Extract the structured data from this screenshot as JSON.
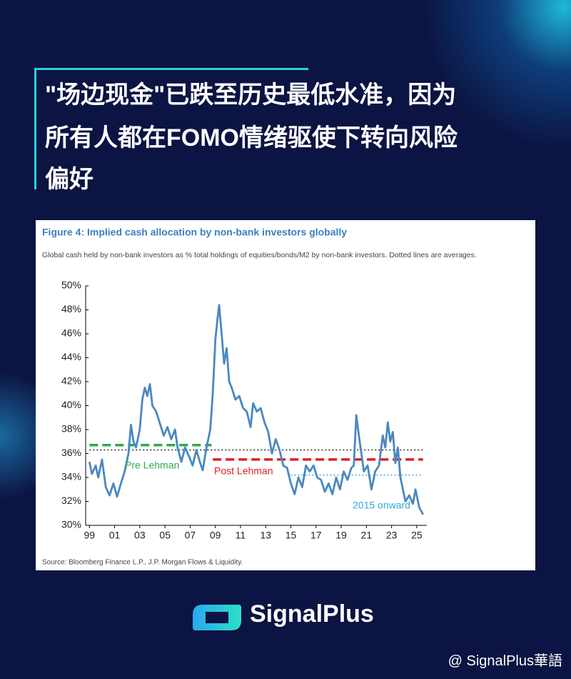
{
  "header": {
    "title_lines": [
      "\"场边现金\"已跌至历史最低水准，因为",
      "所有人都在FOMO情绪驱使下转向风险",
      "偏好"
    ]
  },
  "chart_data": {
    "type": "line",
    "title": "Figure 4: Implied cash allocation by non-bank investors globally",
    "subtitle": "Global cash held by non-bank investors as % total holdings of equities/bonds/M2 by non-bank investors. Dotted lines are averages.",
    "source": "Source: Bloomberg Finance L.P., J.P. Morgan Flows & Liquidity.",
    "x": [
      1999.0,
      1999.2,
      1999.5,
      1999.7,
      2000.0,
      2000.3,
      2000.6,
      2000.9,
      2001.2,
      2001.5,
      2001.8,
      2002.1,
      2002.3,
      2002.5,
      2002.7,
      2003.0,
      2003.2,
      2003.4,
      2003.6,
      2003.8,
      2004.0,
      2004.3,
      2004.6,
      2004.9,
      2005.2,
      2005.5,
      2005.8,
      2006.0,
      2006.3,
      2006.6,
      2006.9,
      2007.2,
      2007.5,
      2007.8,
      2008.0,
      2008.3,
      2008.6,
      2008.8,
      2009.0,
      2009.2,
      2009.3,
      2009.5,
      2009.7,
      2009.9,
      2010.1,
      2010.3,
      2010.6,
      2010.9,
      2011.2,
      2011.5,
      2011.8,
      2012.0,
      2012.3,
      2012.6,
      2012.9,
      2013.2,
      2013.5,
      2013.8,
      2014.1,
      2014.4,
      2014.7,
      2015.0,
      2015.3,
      2015.6,
      2015.9,
      2016.2,
      2016.5,
      2016.8,
      2017.1,
      2017.4,
      2017.7,
      2018.0,
      2018.3,
      2018.6,
      2018.9,
      2019.2,
      2019.5,
      2019.8,
      2020.0,
      2020.2,
      2020.4,
      2020.6,
      2020.8,
      2021.1,
      2021.4,
      2021.7,
      2022.0,
      2022.3,
      2022.5,
      2022.7,
      2022.9,
      2023.1,
      2023.3,
      2023.5,
      2023.7,
      2023.9,
      2024.1,
      2024.4,
      2024.7,
      2024.9,
      2025.2,
      2025.5
    ],
    "series": [
      {
        "color": "#4a88c0",
        "values": [
          35.3,
          34.3,
          35.0,
          34.0,
          35.5,
          33.2,
          32.5,
          33.5,
          32.4,
          33.5,
          34.5,
          36.0,
          38.4,
          37.0,
          36.5,
          38.0,
          40.5,
          41.5,
          40.8,
          41.8,
          40.0,
          39.5,
          38.5,
          37.5,
          38.2,
          37.2,
          38.0,
          36.5,
          35.3,
          36.5,
          35.8,
          35.0,
          36.3,
          35.2,
          34.6,
          36.5,
          38.0,
          41.0,
          45.5,
          47.5,
          48.4,
          46.0,
          43.5,
          44.8,
          42.0,
          41.5,
          40.5,
          40.8,
          39.8,
          39.5,
          38.2,
          40.2,
          39.5,
          39.8,
          38.6,
          37.8,
          36.0,
          37.2,
          36.3,
          35.0,
          34.8,
          33.5,
          32.6,
          34.0,
          33.2,
          35.0,
          34.5,
          35.0,
          34.0,
          33.8,
          32.8,
          33.5,
          32.6,
          34.0,
          33.0,
          34.5,
          33.8,
          34.8,
          35.0,
          39.2,
          37.5,
          36.0,
          34.5,
          35.0,
          33.0,
          34.5,
          35.0,
          37.5,
          36.5,
          38.6,
          37.0,
          37.8,
          35.2,
          36.5,
          34.0,
          33.0,
          32.0,
          32.5,
          31.8,
          33.0,
          31.5,
          30.9
        ]
      }
    ],
    "averages": [
      {
        "value": 36.3,
        "from": 1999.0,
        "to": 2025.5,
        "color": "#222222",
        "style": "dotted"
      },
      {
        "label": "Pre Lehman",
        "value": 36.7,
        "from": 1999.0,
        "to": 2008.7,
        "color": "#2eaa4a",
        "style": "dashed"
      },
      {
        "label": "Post Lehman",
        "value": 35.5,
        "from": 2008.8,
        "to": 2025.5,
        "color": "#e02020",
        "style": "dashed"
      },
      {
        "label": "2015 onward",
        "value": 34.2,
        "from": 2015.0,
        "to": 2025.5,
        "color": "#2aaed8",
        "style": "dotted"
      }
    ],
    "xlim": [
      1998.7,
      2025.8
    ],
    "ylim": [
      30,
      50
    ],
    "xticks": [
      {
        "value": 1999,
        "label": "99"
      },
      {
        "value": 2001,
        "label": "01"
      },
      {
        "value": 2003,
        "label": "03"
      },
      {
        "value": 2005,
        "label": "05"
      },
      {
        "value": 2007,
        "label": "07"
      },
      {
        "value": 2009,
        "label": "09"
      },
      {
        "value": 2011,
        "label": "11"
      },
      {
        "value": 2013,
        "label": "13"
      },
      {
        "value": 2015,
        "label": "15"
      },
      {
        "value": 2017,
        "label": "17"
      },
      {
        "value": 2019,
        "label": "19"
      },
      {
        "value": 2021,
        "label": "21"
      },
      {
        "value": 2023,
        "label": "23"
      },
      {
        "value": 2025,
        "label": "25"
      }
    ],
    "yticks": [
      {
        "value": 30,
        "label": "30%"
      },
      {
        "value": 32,
        "label": "32%"
      },
      {
        "value": 34,
        "label": "34%"
      },
      {
        "value": 36,
        "label": "36%"
      },
      {
        "value": 38,
        "label": "38%"
      },
      {
        "value": 40,
        "label": "40%"
      },
      {
        "value": 42,
        "label": "42%"
      },
      {
        "value": 44,
        "label": "44%"
      },
      {
        "value": 46,
        "label": "46%"
      },
      {
        "value": 48,
        "label": "48%"
      },
      {
        "value": 50,
        "label": "50%"
      }
    ]
  },
  "footer": {
    "brand": "SignalPlus",
    "watermark": "@ SignalPlus華語"
  }
}
